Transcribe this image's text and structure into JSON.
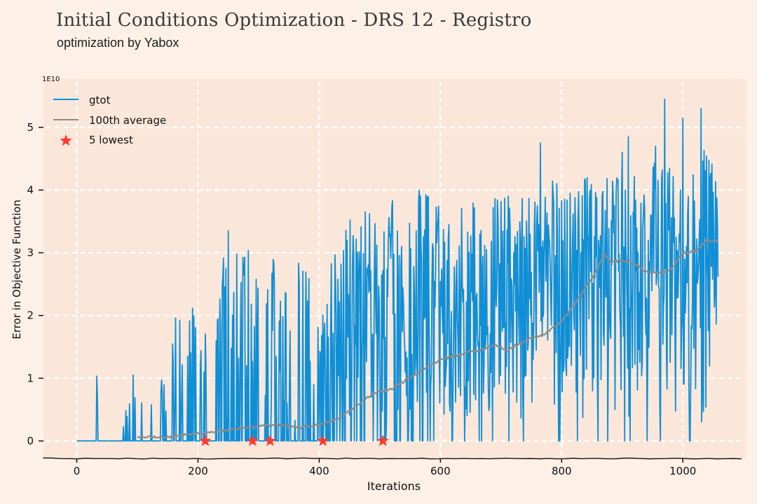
{
  "title": "Initial Conditions Optimization - DRS 12 - Registro",
  "subtitle": "optimization by Yabox",
  "colors": {
    "background": "#fdf0e6",
    "plot_background": "#fbe7da",
    "gtot": "#0f8fd6",
    "average": "#8c8c8c",
    "lowest": "#ff3b2f",
    "grid": "#ffffff"
  },
  "chart_data": {
    "type": "line",
    "title": "",
    "xlabel": "Iterations",
    "ylabel": "Error in Objective Function",
    "y_multiplier_label": "1E10",
    "xlim": [
      -55,
      1105
    ],
    "ylim": [
      -0.28,
      5.78
    ],
    "x_ticks": [
      0,
      200,
      400,
      600,
      800,
      1000
    ],
    "y_ticks": [
      0,
      1,
      2,
      3,
      4,
      5
    ],
    "grid": true,
    "legend_position": "top-left",
    "series": [
      {
        "name": "gtot",
        "kind": "line",
        "color": "#0f8fd6",
        "envelope": {
          "x": [
            0,
            20,
            40,
            60,
            80,
            100,
            130,
            160,
            190,
            220,
            250,
            280,
            310,
            340,
            370,
            400,
            430,
            460,
            490,
            520,
            550,
            580,
            610,
            640,
            670,
            700,
            730,
            760,
            790,
            820,
            850,
            880,
            910,
            940,
            970,
            1000,
            1030,
            1058
          ],
          "y": [
            0.2,
            1.0,
            1.55,
            1.0,
            0.9,
            1.75,
            0.6,
            2.0,
            2.3,
            1.8,
            3.45,
            3.0,
            3.45,
            2.3,
            3.4,
            1.9,
            3.45,
            3.6,
            3.7,
            3.9,
            3.75,
            4.15,
            3.5,
            3.85,
            3.8,
            4.0,
            3.8,
            4.2,
            4.2,
            4.2,
            4.2,
            4.2,
            4.2,
            4.3,
            4.6,
            4.3,
            4.7,
            4.5
          ],
          "spikes": [
            [
              970,
              5.45
            ],
            [
              1030,
              5.3
            ],
            [
              1000,
              5.15
            ],
            [
              910,
              4.85
            ],
            [
              955,
              4.7
            ],
            [
              765,
              4.75
            ],
            [
              900,
              4.6
            ],
            [
              565,
              4.0
            ],
            [
              580,
              3.9
            ]
          ]
        },
        "coverage": [
          [
            0,
            0.08
          ],
          [
            100,
            0.12
          ],
          [
            200,
            0.28
          ],
          [
            300,
            0.38
          ],
          [
            380,
            0.45
          ],
          [
            420,
            0.6
          ],
          [
            480,
            0.78
          ],
          [
            540,
            0.85
          ],
          [
            620,
            0.92
          ],
          [
            700,
            0.95
          ],
          [
            800,
            0.95
          ],
          [
            850,
            0.97
          ],
          [
            1058,
            0.97
          ]
        ],
        "floor": 0.0
      },
      {
        "name": "100th average",
        "kind": "line",
        "color": "#8c8c8c",
        "x": [
          100,
          150,
          200,
          250,
          300,
          330,
          370,
          400,
          430,
          460,
          490,
          520,
          560,
          600,
          640,
          660,
          690,
          710,
          740,
          770,
          800,
          830,
          860,
          870,
          880,
          900,
          920,
          940,
          960,
          980,
          1000,
          1020,
          1040,
          1058
        ],
        "y": [
          0.07,
          0.06,
          0.12,
          0.17,
          0.23,
          0.26,
          0.22,
          0.25,
          0.35,
          0.55,
          0.76,
          0.83,
          1.07,
          1.3,
          1.4,
          1.44,
          1.53,
          1.45,
          1.6,
          1.7,
          1.9,
          2.3,
          2.75,
          2.98,
          2.85,
          2.88,
          2.83,
          2.7,
          2.68,
          2.72,
          3.0,
          3.02,
          3.2,
          3.18
        ]
      },
      {
        "name": "5 lowest",
        "kind": "scatter",
        "color": "#ff3b2f",
        "x": [
          212,
          290,
          319,
          406,
          505
        ],
        "y": [
          0.0,
          0.0,
          0.0,
          0.0,
          0.0
        ]
      }
    ]
  }
}
